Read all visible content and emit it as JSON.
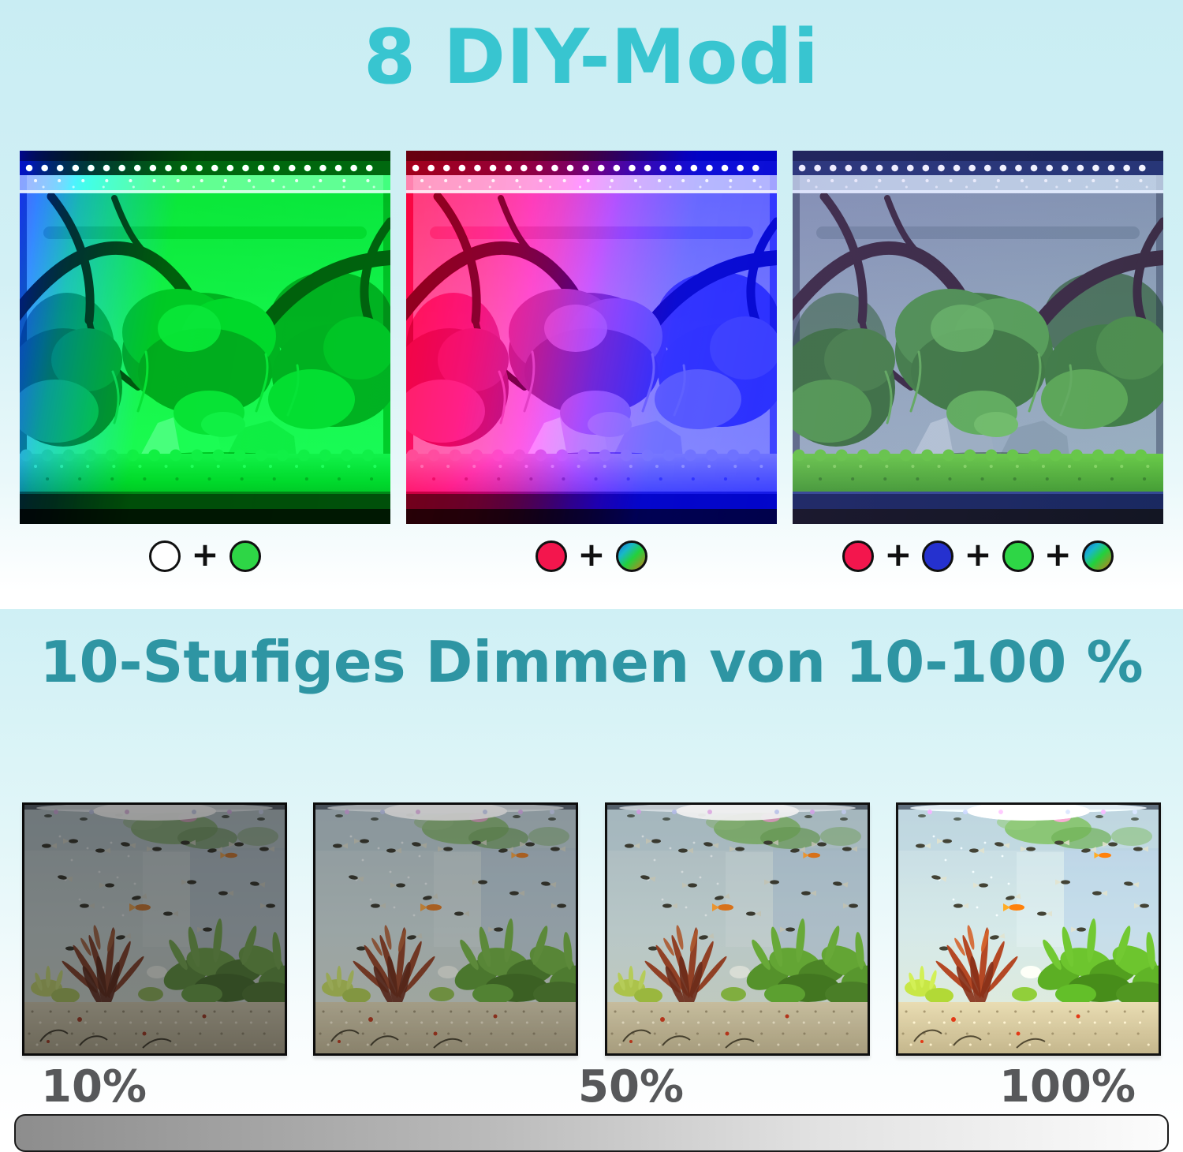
{
  "modes_section": {
    "title": "8 DIY-Modi",
    "title_color": "#38c5d0",
    "plus_sign": "+",
    "modes": [
      {
        "name": "white-plus-green",
        "dots": [
          "#ffffff",
          "#2ed646"
        ]
      },
      {
        "name": "red-plus-rainbow",
        "dots": [
          "#f3164d",
          "rainbow"
        ]
      },
      {
        "name": "red-blue-green-plus-rainbow",
        "dots": [
          "#f3164d",
          "#2531cf",
          "#2ed646",
          "rainbow"
        ]
      }
    ],
    "rainbow_gradient": "linear-gradient(135deg,#1b6fd8 0%,#18b7c9 28%,#23d13c 55%,#c97a1e 100%)"
  },
  "dimming_section": {
    "title": "10-Stufiges Dimmen von 10-100 %",
    "title_color": "#2e95a3",
    "levels": [
      {
        "percent": 10
      },
      {
        "percent": 40
      },
      {
        "percent": 70
      },
      {
        "percent": 100
      }
    ],
    "scale_labels": [
      "10%",
      "50%",
      "100%"
    ],
    "label_color": "#57585a",
    "bar_gradient": "linear-gradient(90deg,#8d8d8d 0%,#b9b9b9 40%,#e2e2e2 70%,#fcfcfc 100%)"
  }
}
